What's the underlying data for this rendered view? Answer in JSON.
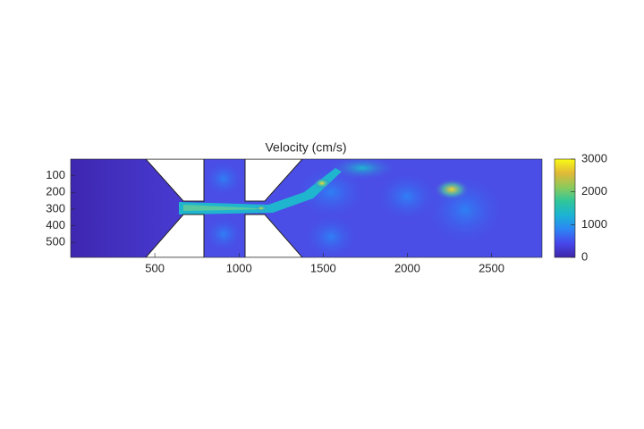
{
  "chart_data": {
    "type": "image",
    "title": "Velocity (cm/s)",
    "xlim": [
      0,
      2800
    ],
    "xticks": [
      500,
      1000,
      1500,
      2000,
      2500
    ],
    "ylim": [
      0,
      590
    ],
    "yticks": [
      100,
      200,
      300,
      400,
      500
    ],
    "y_reversed": true,
    "colorbar": {
      "lim": [
        0,
        3000
      ],
      "ticks": [
        0,
        1000,
        2000,
        3000
      ],
      "colors": [
        "#3e26a8",
        "#4746eb",
        "#2c85f5",
        "#1bb3d4",
        "#2fc69a",
        "#8dca5b",
        "#e1b937",
        "#f9fb15"
      ]
    }
  }
}
